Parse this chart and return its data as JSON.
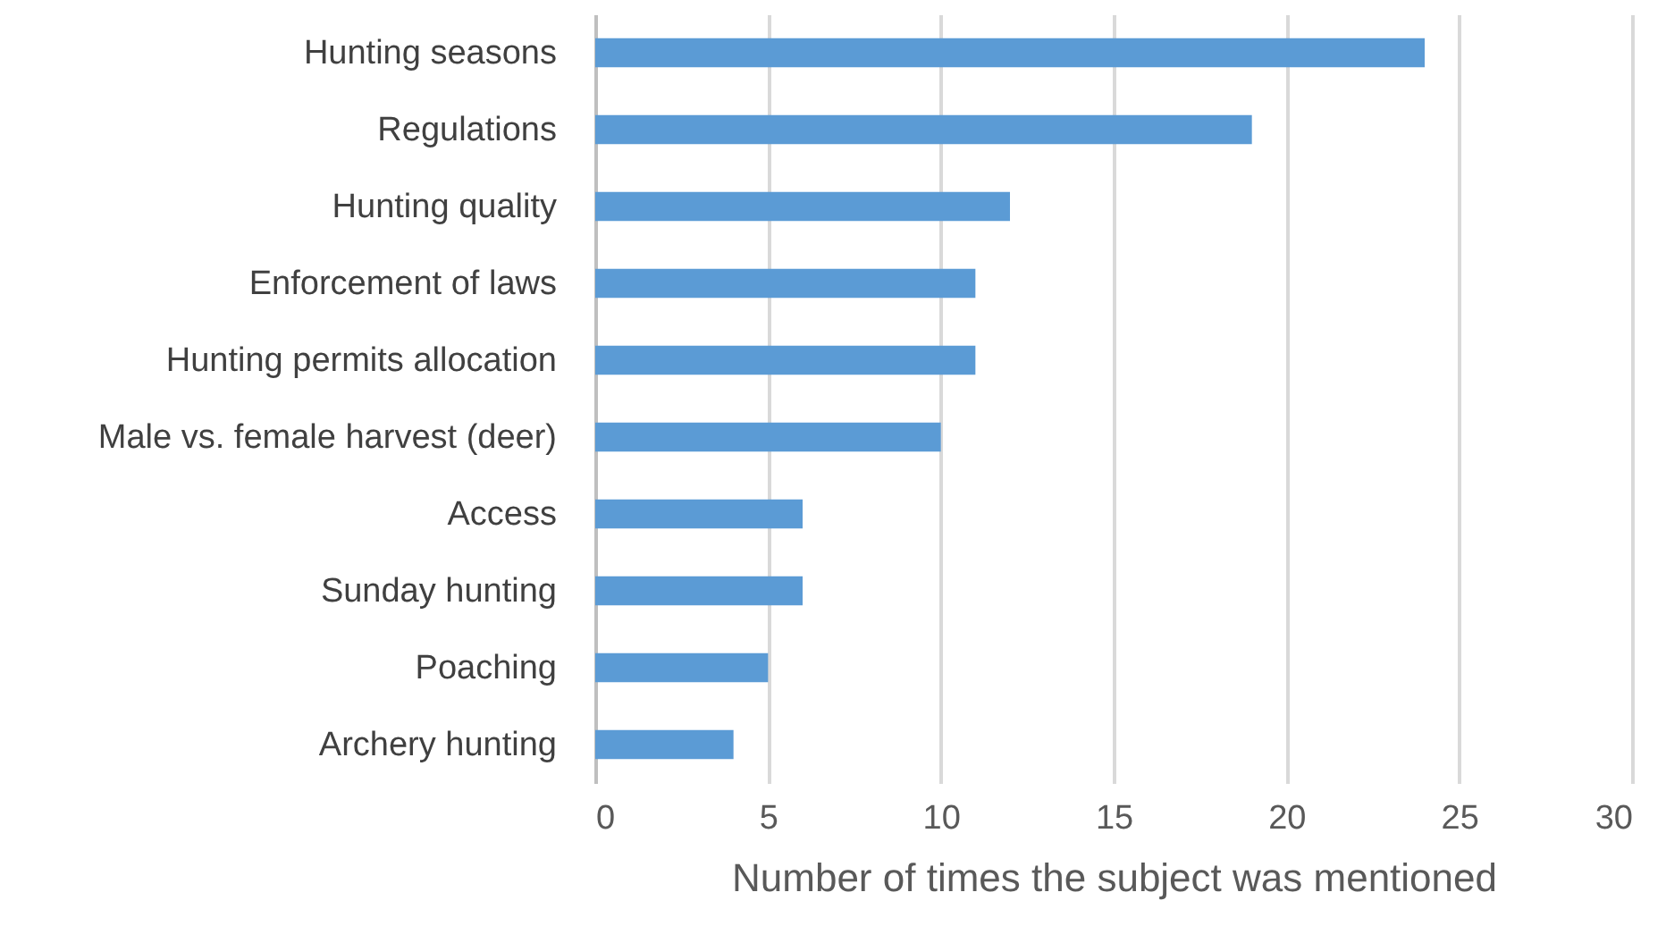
{
  "chart_data": {
    "type": "bar",
    "orientation": "horizontal",
    "xlabel": "Number of times the subject was mentioned",
    "categories": [
      "Hunting seasons",
      "Regulations",
      "Hunting quality",
      "Enforcement of laws",
      "Hunting permits allocation",
      "Male vs. female harvest (deer)",
      "Access",
      "Sunday hunting",
      "Poaching",
      "Archery hunting"
    ],
    "values": [
      24,
      19,
      12,
      11,
      11,
      10,
      6,
      6,
      5,
      4
    ],
    "color": "#5b9bd5",
    "xlim": [
      0,
      30
    ],
    "xticks": [
      0,
      5,
      10,
      15,
      20,
      25,
      30
    ],
    "grid": "x"
  }
}
